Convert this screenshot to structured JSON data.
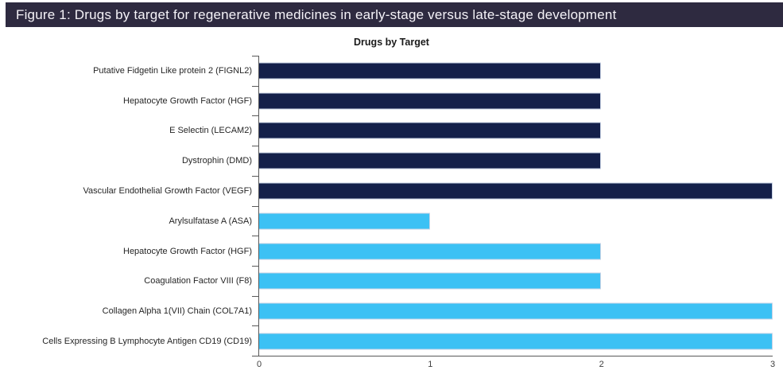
{
  "header": {
    "caption": "Figure 1: Drugs by target for regenerative medicines in early-stage versus late-stage development",
    "bar_color": "#2e2a40",
    "text_color": "#f5f3f8"
  },
  "chart_data": {
    "type": "bar",
    "orientation": "horizontal",
    "title": "Drugs by Target",
    "categories": [
      "Putative Fidgetin Like protein 2 (FIGNL2)",
      "Hepatocyte Growth Factor (HGF)",
      "E Selectin (LECAM2)",
      "Dystrophin (DMD)",
      "Vascular Endothelial Growth Factor (VEGF)",
      "Arylsulfatase A (ASA)",
      "Hepatocyte Growth Factor (HGF)",
      "Coagulation Factor VIII (F8)",
      "Collagen Alpha 1(VII) Chain (COL7A1)",
      "Cells Expressing B Lymphocyte Antigen CD19 (CD19)"
    ],
    "values": [
      2,
      2,
      2,
      2,
      3,
      1,
      2,
      2,
      3,
      3
    ],
    "bar_colors": [
      "#14204a",
      "#14204a",
      "#14204a",
      "#14204a",
      "#14204a",
      "#3cc1f4",
      "#3cc1f4",
      "#3cc1f4",
      "#3cc1f4",
      "#3cc1f4"
    ],
    "bar_border_color": "#c9d3e6",
    "xlim": [
      0,
      3
    ],
    "x_ticks": [
      "0",
      "1",
      "2",
      "3"
    ],
    "xlabel": "",
    "ylabel": "",
    "grid": false,
    "legend": false,
    "axis_color": "#595959",
    "tick_label_color": "#404040"
  }
}
